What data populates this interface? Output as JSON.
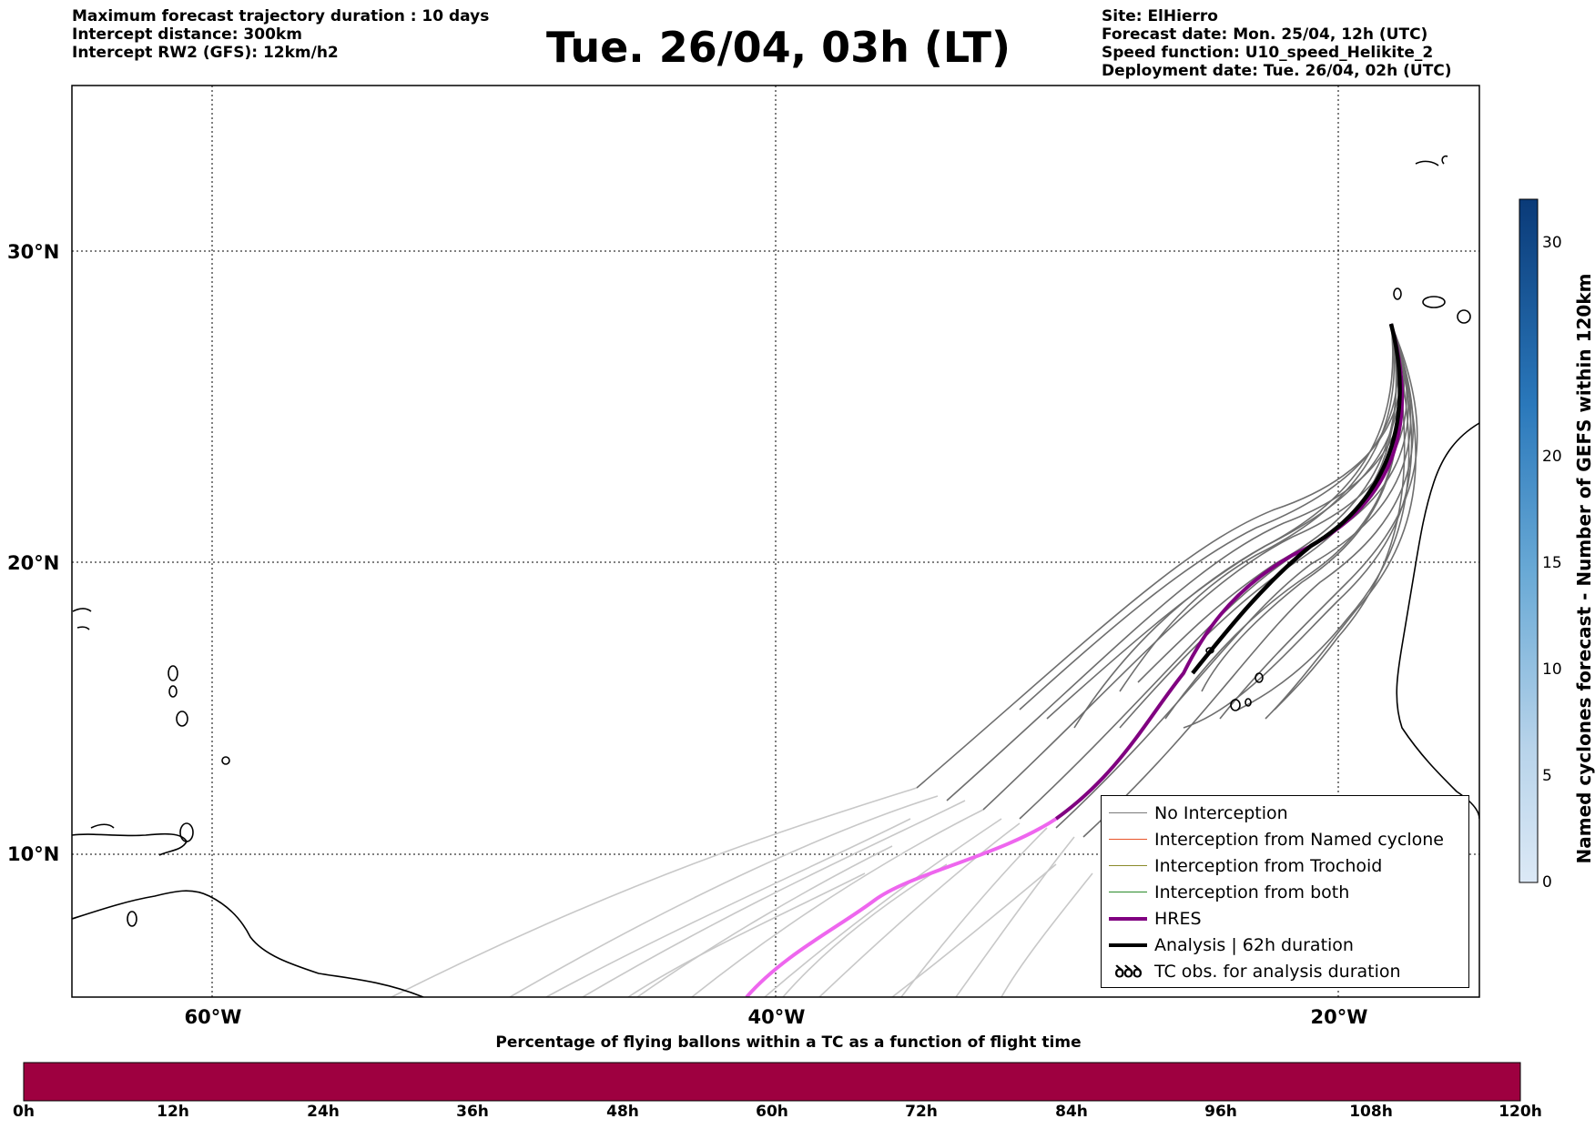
{
  "header": {
    "left": [
      "Maximum forecast trajectory duration : 10 days",
      "Intercept distance: 300km",
      "Intercept RW2 (GFS):  12km/h2"
    ],
    "title": "Tue. 26/04, 03h (LT)",
    "right": [
      "Site: ElHierro",
      "Forecast date: Mon. 25/04, 12h (UTC)",
      "Speed function: U10_speed_Helikite_2",
      "Deployment date: Tue. 26/04, 02h (UTC)"
    ]
  },
  "map": {
    "lon_range": [
      -65,
      15
    ],
    "lat_range": [
      5.5,
      35
    ],
    "lon_labels": [
      "60°W",
      "40°W",
      "20°W"
    ],
    "lat_labels": [
      "30°N",
      "20°N",
      "10°N"
    ],
    "gridlines": true,
    "colors": {
      "ensemble_no_interception": "#6e6e6e",
      "ensemble_faded": "#c8c8c8",
      "hres": "#800080",
      "hres_faded": "#ee66ee",
      "analysis": "#000000"
    }
  },
  "legend": {
    "placement": "lower-right",
    "items": [
      {
        "label": "No Interception",
        "color": "#7a7a7a",
        "style": "line-thin"
      },
      {
        "label": "Interception from Named cyclone",
        "color": "#e8542a",
        "style": "line-thin"
      },
      {
        "label": "Interception from Trochoid",
        "color": "#8a8a2a",
        "style": "line-thin"
      },
      {
        "label": "Interception from both",
        "color": "#2a8a2a",
        "style": "line-thin"
      },
      {
        "label": "HRES",
        "color": "#800080",
        "style": "line-thick"
      },
      {
        "label": "Analysis | 62h duration",
        "color": "#000000",
        "style": "line-thick"
      },
      {
        "label": "TC obs. for analysis duration",
        "color": "#000000",
        "style": "tc-symbols",
        "symbol": "ꝺꝺꝺ"
      }
    ]
  },
  "colorbar_right": {
    "label": "Named cyclones forecast - Number of GEFS within 120km",
    "ticks": [
      "0",
      "5",
      "10",
      "15",
      "20",
      "30"
    ],
    "range": [
      0,
      32
    ]
  },
  "colorbar_bottom": {
    "title": "Percentage of flying ballons within a TC as a function of flight time",
    "ticks": [
      "0h",
      "12h",
      "24h",
      "36h",
      "48h",
      "60h",
      "72h",
      "84h",
      "96h",
      "108h",
      "120h"
    ],
    "fill_color": "#9e0040"
  }
}
